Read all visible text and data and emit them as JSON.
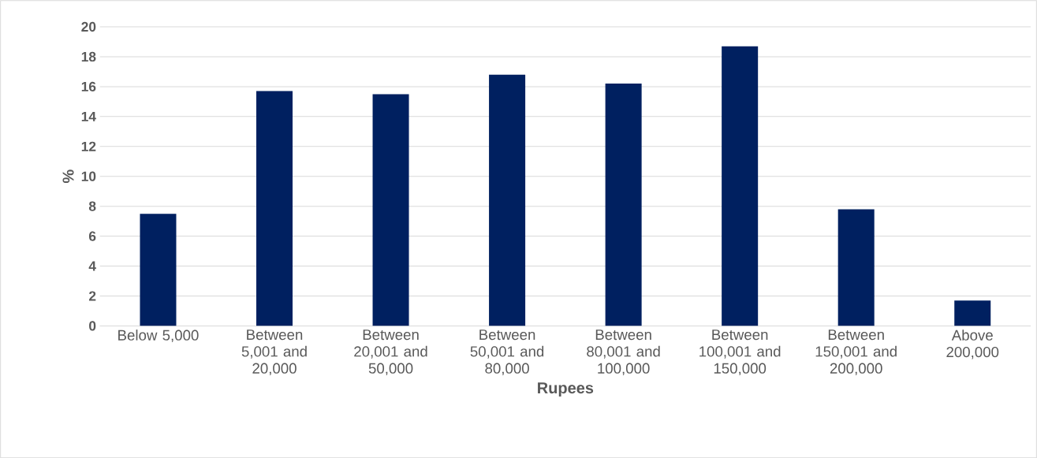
{
  "chart_data": {
    "type": "bar",
    "xlabel": "Rupees",
    "ylabel": "%",
    "categories": [
      "Below 5,000",
      "Between 5,001 and 20,000",
      "Between 20,001 and 50,000",
      "Between 50,001 and 80,000",
      "Between 80,001 and 100,000",
      "Between 100,001 and 150,000",
      "Between 150,001 and 200,000",
      "Above 200,000"
    ],
    "values": [
      7.5,
      15.7,
      15.5,
      16.8,
      16.2,
      18.7,
      7.8,
      1.7
    ],
    "color": "#002060",
    "ylim": [
      0,
      20
    ],
    "yticks": [
      0,
      2,
      4,
      6,
      8,
      10,
      12,
      14,
      16,
      18,
      20
    ],
    "grid": "y"
  }
}
